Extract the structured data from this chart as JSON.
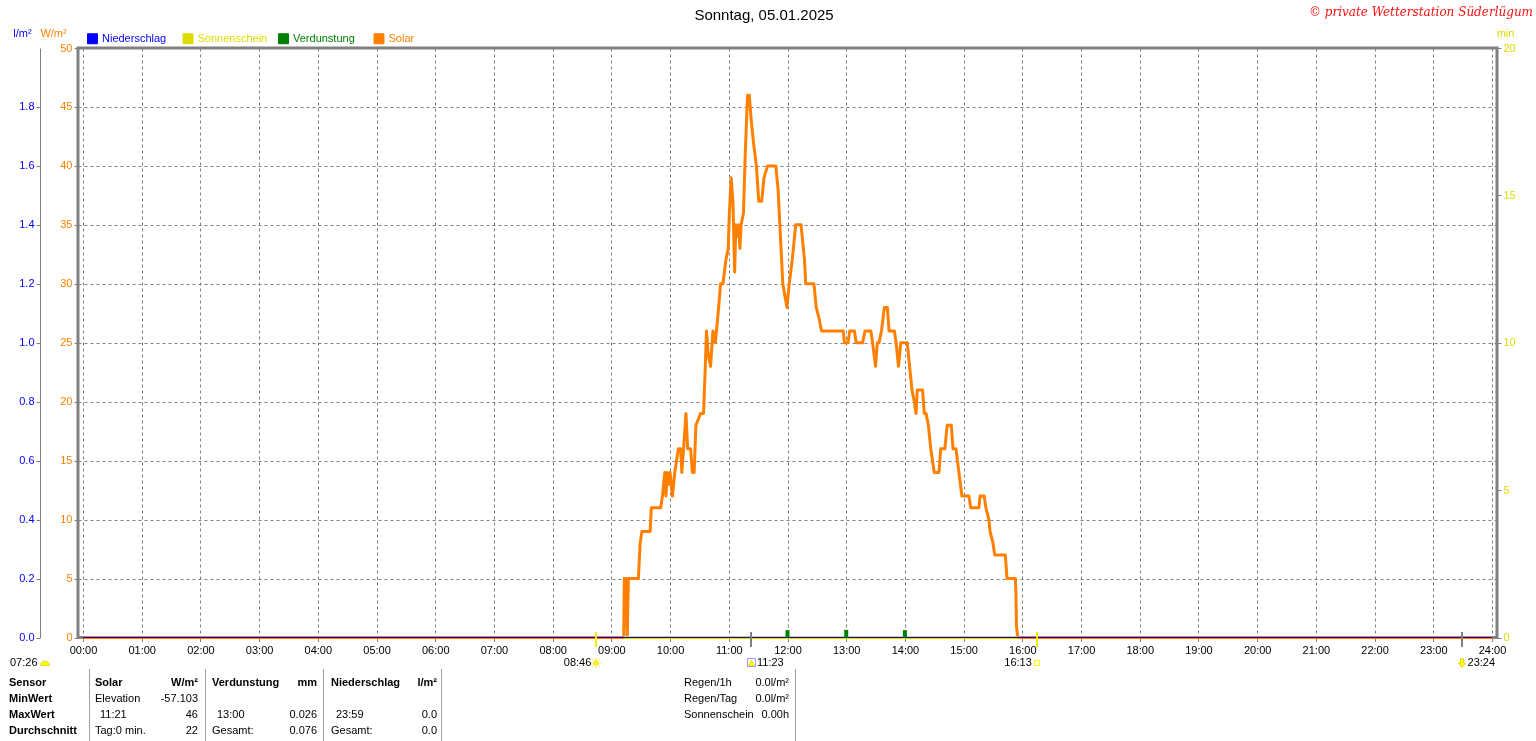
{
  "chart_data": {
    "type": "line",
    "title": "Sonntag, 05.01.2025",
    "ylabel": "W/m²",
    "y2label": "l/m²",
    "y3label": "min",
    "xlim": [
      0,
      24
    ],
    "xticks": [
      {
        "value": 0,
        "label": "00:00"
      },
      {
        "value": 1,
        "label": "01:00"
      },
      {
        "value": 2,
        "label": "02:00"
      },
      {
        "value": 3,
        "label": "03:00"
      },
      {
        "value": 4,
        "label": "04:00"
      },
      {
        "value": 5,
        "label": "05:00"
      },
      {
        "value": 6,
        "label": "06:00"
      },
      {
        "value": 7,
        "label": "07:00"
      },
      {
        "value": 8,
        "label": "08:00"
      },
      {
        "value": 9,
        "label": "09:00"
      },
      {
        "value": 10,
        "label": "10:00"
      },
      {
        "value": 11,
        "label": "11:00"
      },
      {
        "value": 12,
        "label": "12:00"
      },
      {
        "value": 13,
        "label": "13:00"
      },
      {
        "value": 14,
        "label": "14:00"
      },
      {
        "value": 15,
        "label": "15:00"
      },
      {
        "value": 16,
        "label": "16:00"
      },
      {
        "value": 17,
        "label": "17:00"
      },
      {
        "value": 18,
        "label": "18:00"
      },
      {
        "value": 19,
        "label": "19:00"
      },
      {
        "value": 20,
        "label": "20:00"
      },
      {
        "value": 21,
        "label": "21:00"
      },
      {
        "value": 22,
        "label": "22:00"
      },
      {
        "value": 23,
        "label": "23:00"
      },
      {
        "value": 24,
        "label": "24:00"
      }
    ],
    "ylim": [
      0,
      50
    ],
    "yticks": [
      0,
      5,
      10,
      15,
      20,
      25,
      30,
      35,
      40,
      45,
      50
    ],
    "y2lim": [
      0,
      2
    ],
    "y2ticks": [
      {
        "value": 0,
        "label": "0.0"
      },
      0.2,
      0.4,
      0.6,
      0.8,
      {
        "value": 1,
        "label": "1.0"
      },
      1.2,
      1.4,
      1.6,
      1.8
    ],
    "y3lim": [
      0,
      20
    ],
    "y3ticks": [
      0,
      5,
      10,
      15,
      20
    ],
    "grid": true,
    "legend": "top left",
    "series": [
      {
        "name": "Niederschlag",
        "color": "#0000ff",
        "axis": "y2",
        "x": [
          0,
          24
        ],
        "values": [
          0,
          0
        ]
      },
      {
        "name": "Sonnenschein",
        "color": "#dcdc00",
        "axis": "y3",
        "x": [
          9.21,
          15.92
        ],
        "values": [
          0,
          0
        ]
      },
      {
        "name": "Verdunstung",
        "color": "#008000",
        "axis": "y2",
        "type": "bar",
        "x": [
          12,
          13,
          14
        ],
        "values": [
          0.025,
          0.026,
          0.025
        ]
      },
      {
        "name": "Solar",
        "color": "#ff8000",
        "x": [
          0,
          9.21,
          9.22,
          9.24,
          9.25,
          9.27,
          9.29,
          9.46,
          9.49,
          9.52,
          9.66,
          9.68,
          9.84,
          9.87,
          9.91,
          9.93,
          9.95,
          9.98,
          10.0,
          10.04,
          10.08,
          10.14,
          10.18,
          10.2,
          10.23,
          10.27,
          10.3,
          10.35,
          10.38,
          10.41,
          10.44,
          10.52,
          10.57,
          10.6,
          10.62,
          10.65,
          10.69,
          10.73,
          10.77,
          10.81,
          10.86,
          10.9,
          10.95,
          10.99,
          11.01,
          11.04,
          11.07,
          11.1,
          11.12,
          11.15,
          11.17,
          11.19,
          11.21,
          11.25,
          11.28,
          11.32,
          11.35,
          11.38,
          11.42,
          11.47,
          11.51,
          11.56,
          11.6,
          11.66,
          11.8,
          11.84,
          11.87,
          11.92,
          11.99,
          12.03,
          12.08,
          12.14,
          12.23,
          12.29,
          12.31,
          12.45,
          12.49,
          12.54,
          12.58,
          12.95,
          12.97,
          13.03,
          13.06,
          13.14,
          13.17,
          13.28,
          13.32,
          13.42,
          13.45,
          13.5,
          13.53,
          13.56,
          13.6,
          13.65,
          13.7,
          13.73,
          13.82,
          13.85,
          13.89,
          13.93,
          14.04,
          14.08,
          14.12,
          14.16,
          14.19,
          14.21,
          14.3,
          14.33,
          14.36,
          14.4,
          14.44,
          14.5,
          14.58,
          14.61,
          14.68,
          14.72,
          14.79,
          14.82,
          14.87,
          14.92,
          14.97,
          15.09,
          15.12,
          15.26,
          15.28,
          15.35,
          15.38,
          15.43,
          15.45,
          15.5,
          15.53,
          15.71,
          15.74,
          15.88,
          15.89,
          15.9,
          15.92,
          24
        ],
        "values": [
          0,
          0,
          5,
          1,
          5,
          0,
          5,
          5,
          8,
          9,
          9,
          11,
          11,
          12,
          14,
          12,
          14,
          13,
          14,
          12,
          14,
          16,
          16,
          14,
          16,
          19,
          16,
          16,
          14,
          14,
          18,
          19,
          19,
          23,
          26,
          24,
          23,
          26,
          25,
          27,
          30,
          30,
          32,
          33,
          36,
          39,
          37,
          31,
          35,
          34,
          35,
          33,
          35,
          36,
          41,
          46,
          46,
          44,
          42,
          40,
          37,
          37,
          39,
          40,
          40,
          38,
          35,
          30,
          28,
          30,
          32,
          35,
          35,
          32,
          30,
          30,
          28,
          27,
          26,
          26,
          25,
          25,
          26,
          26,
          25,
          25,
          26,
          26,
          25,
          23,
          25,
          25,
          26,
          28,
          28,
          26,
          26,
          25,
          23,
          25,
          25,
          23,
          21,
          20,
          19,
          21,
          21,
          19,
          19,
          18,
          16,
          14,
          14,
          16,
          16,
          18,
          18,
          16,
          16,
          14,
          12,
          12,
          11,
          11,
          12,
          12,
          11,
          10,
          9,
          8,
          7,
          7,
          5,
          5,
          4,
          1,
          0,
          0
        ]
      }
    ],
    "annotations": [
      "© private Wetterstation Süderlügum",
      "07:26",
      {
        "text": "08:46",
        "x": 8.767,
        "y": 0
      },
      {
        "text": "11:23",
        "x": 11.383,
        "y": 0
      },
      {
        "text": "16:13",
        "x": 16.217,
        "y": 0
      },
      {
        "text": "23:24",
        "x": 23.4,
        "y": 0
      },
      "Sensor",
      "Solar",
      "W/m²",
      "Verdunstung",
      "mm",
      "Niederschlag",
      "l/m²",
      "Regen/1h",
      "0.0l/m²",
      "MinWert",
      "Elevation",
      "-57.103",
      "Regen/Tag",
      "0.0l/m²",
      "MaxWert",
      "11:21",
      "46",
      "13:00",
      "0.026",
      "23:59",
      "0.0",
      "Sonnenschein",
      "0.00h",
      "Durchschnitt",
      "Tag:0 min.",
      "22",
      "Gesamt:",
      "0.076",
      "Gesamt:",
      "0.0"
    ]
  }
}
